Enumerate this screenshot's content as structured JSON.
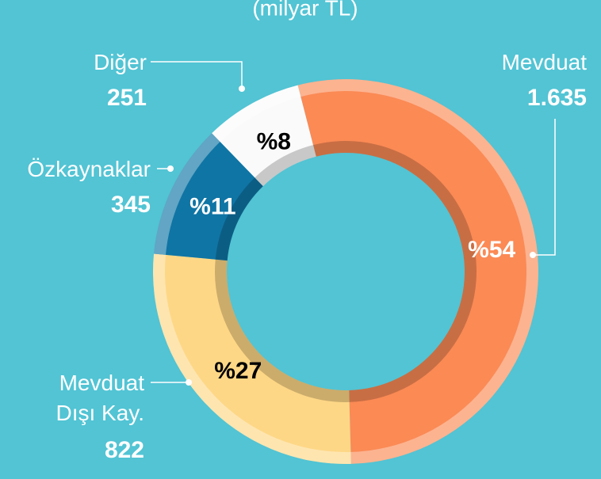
{
  "chart_data": {
    "type": "donut",
    "subtitle": "(milyar TL)",
    "categories": [
      "Mevduat",
      "Mevduat Dışı Kay.",
      "Özkaynaklar",
      "Diğer"
    ],
    "values": [
      1635,
      822,
      345,
      251
    ],
    "value_labels": [
      "1.635",
      "822",
      "345",
      "251"
    ],
    "share_labels": [
      "%54",
      "%27",
      "%11",
      "%8"
    ],
    "colors": [
      "#fb8a55",
      "#fed786",
      "#0f75a5",
      "#fbfafb"
    ],
    "share_label_colors": [
      "#ffffff",
      "#000000",
      "#ffffff",
      "#000000"
    ]
  }
}
